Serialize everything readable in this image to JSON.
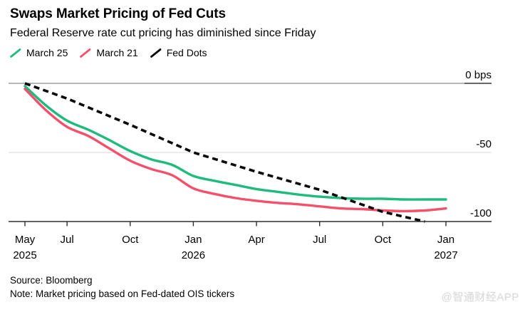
{
  "chart_data": {
    "type": "line",
    "title": "Swaps Market Pricing of Fed Cuts",
    "subtitle": "Federal Reserve rate cut pricing has diminished since Friday",
    "ylabel": "bps",
    "ylim": [
      -105,
      5
    ],
    "grid": "horizontal",
    "legend_position": "top",
    "x_axis": {
      "unit": "months since May 2025",
      "start": "May 2025",
      "end": "Jan 2027",
      "ticks": [
        {
          "m": 0,
          "label": "May",
          "year": "2025"
        },
        {
          "m": 2,
          "label": "Jul",
          "year": ""
        },
        {
          "m": 5,
          "label": "Oct",
          "year": ""
        },
        {
          "m": 8,
          "label": "Jan",
          "year": "2026"
        },
        {
          "m": 11,
          "label": "Apr",
          "year": ""
        },
        {
          "m": 14,
          "label": "Jul",
          "year": ""
        },
        {
          "m": 17,
          "label": "Oct",
          "year": ""
        },
        {
          "m": 20,
          "label": "Jan",
          "year": "2027"
        }
      ]
    },
    "y_ticks": [
      {
        "v": 0,
        "label": "0 bps"
      },
      {
        "v": -50,
        "label": "-50"
      },
      {
        "v": -100,
        "label": "-100"
      }
    ],
    "series": [
      {
        "name": "March 25",
        "color": "#1FBB7C",
        "dashed": false,
        "points": [
          [
            0,
            -2
          ],
          [
            1,
            -16
          ],
          [
            2,
            -27
          ],
          [
            3,
            -33.5
          ],
          [
            4,
            -41
          ],
          [
            5,
            -49
          ],
          [
            6,
            -55
          ],
          [
            7,
            -59
          ],
          [
            8,
            -67
          ],
          [
            9,
            -70.5
          ],
          [
            10,
            -73.5
          ],
          [
            11,
            -76.5
          ],
          [
            12,
            -78.5
          ],
          [
            13,
            -80.5
          ],
          [
            14,
            -82
          ],
          [
            15,
            -83
          ],
          [
            16,
            -83.5
          ],
          [
            17,
            -83.5
          ],
          [
            18,
            -84
          ],
          [
            19,
            -84
          ],
          [
            20,
            -84
          ]
        ]
      },
      {
        "name": "March 21",
        "color": "#F4506C",
        "dashed": false,
        "points": [
          [
            0,
            -4
          ],
          [
            1,
            -19.5
          ],
          [
            2,
            -31.5
          ],
          [
            3,
            -38
          ],
          [
            4,
            -47
          ],
          [
            5,
            -56
          ],
          [
            6,
            -62
          ],
          [
            7,
            -66.5
          ],
          [
            8,
            -76
          ],
          [
            9,
            -80
          ],
          [
            10,
            -83
          ],
          [
            11,
            -85
          ],
          [
            12,
            -86.5
          ],
          [
            13,
            -87.5
          ],
          [
            14,
            -89
          ],
          [
            15,
            -90.5
          ],
          [
            16,
            -91
          ],
          [
            17,
            -92
          ],
          [
            18,
            -92.5
          ],
          [
            19,
            -92
          ],
          [
            20,
            -90.5
          ]
        ]
      },
      {
        "name": "Fed Dots",
        "color": "#0A0A0A",
        "dashed": true,
        "points": [
          [
            0,
            0
          ],
          [
            2,
            -11
          ],
          [
            5,
            -30
          ],
          [
            8,
            -50
          ],
          [
            11,
            -64
          ],
          [
            14,
            -77
          ],
          [
            17,
            -93
          ],
          [
            19,
            -100
          ]
        ]
      }
    ]
  },
  "footer": {
    "source": "Source: Bloomberg",
    "note": "Note: Market pricing based on Fed-dated OIS tickers"
  },
  "watermark": "@智通财经APP"
}
